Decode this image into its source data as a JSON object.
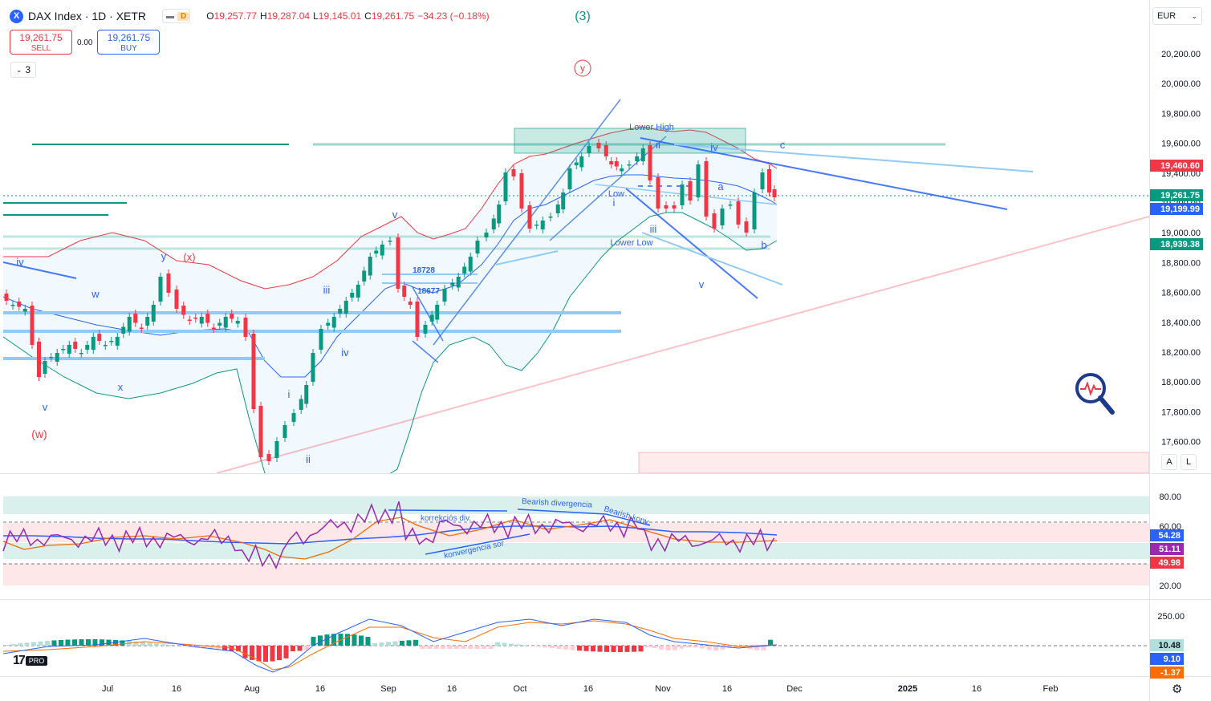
{
  "header": {
    "symbol_icon": "X",
    "title": "DAX Index · 1D · XETR",
    "market_status": "D",
    "ohlc": {
      "o_label": "O",
      "o": "19,257.77",
      "h_label": "H",
      "h": "19,287.04",
      "l_label": "L",
      "l": "19,145.01",
      "c_label": "C",
      "c": "19,261.75",
      "change": "−34.23 (−0.18%)"
    }
  },
  "trade": {
    "sell_price": "19,261.75",
    "sell_label": "SELL",
    "spread": "0.00",
    "buy_price": "19,261.75",
    "buy_label": "BUY"
  },
  "indicators_toggle": {
    "count": "3",
    "icon": "chevron-down-icon"
  },
  "currency": {
    "value": "EUR",
    "icon": "chevron-down-icon"
  },
  "scale_buttons": {
    "auto": "A",
    "log": "L"
  },
  "price_axis": [
    "20,200.00",
    "20,000.00",
    "19,800.00",
    "19,600.00",
    "19,400.00",
    "19,200.00",
    "19,000.00",
    "18,800.00",
    "18,600.00",
    "18,400.00",
    "18,200.00",
    "18,000.00",
    "17,800.00",
    "17,600.00"
  ],
  "price_badges": [
    {
      "value": "19,460.60",
      "color": "#f23645"
    },
    {
      "value": "19,261.75",
      "color": "#089981"
    },
    {
      "value": "19,199.99",
      "color": "#2962ff"
    },
    {
      "value": "18,939.38",
      "color": "#089981"
    }
  ],
  "rsi_axis": [
    "80.00",
    "60.00",
    "20.00"
  ],
  "rsi_badges": [
    {
      "value": "54.28",
      "color": "#2962ff"
    },
    {
      "value": "51.11",
      "color": "#9c27b0"
    },
    {
      "value": "49.98",
      "color": "#f23645"
    }
  ],
  "macd_axis": [
    "250.00"
  ],
  "macd_badges": [
    {
      "value": "10.48",
      "color": "#b2dfdb"
    },
    {
      "value": "9.10",
      "color": "#2962ff"
    },
    {
      "value": "-1.37",
      "color": "#ff6d00"
    }
  ],
  "time_axis": [
    "Jul",
    "16",
    "Aug",
    "16",
    "Sep",
    "16",
    "Oct",
    "16",
    "Nov",
    "16",
    "Dec",
    "2025",
    "16",
    "Feb"
  ],
  "annotations": {
    "wave3": "(3)",
    "wave_y_circle": "y",
    "lower_high": "Lower High",
    "lower_low": "Lower Low",
    "low": "Low",
    "ii": "ii",
    "iv": "iv",
    "c": "c",
    "a": "a",
    "b": "b",
    "i_oct": "i",
    "iii_nov": "iii",
    "v_nov": "v",
    "v_aug": "v",
    "iii_aug": "iii",
    "iv_aug": "iv",
    "i_aug": "i",
    "ii_aug": "ii",
    "p18728": "18728",
    "p18677": "18677",
    "iv_left": "iv",
    "w_left": "w",
    "y_left": "y",
    "x_red": "(x)",
    "x_left": "x",
    "v_left": "v",
    "w_red": "(w)",
    "korr_div": "korrekciós div.",
    "bear_div": "Bearish divergencia",
    "bear_konv": "Bearish konv.",
    "konv_sor": "konvergencia sor"
  },
  "logo": {
    "tv": "17",
    "pro": "PRO"
  },
  "icons": {
    "settings": "gear-icon",
    "magnifier": "magnifier-pulse-icon"
  }
}
